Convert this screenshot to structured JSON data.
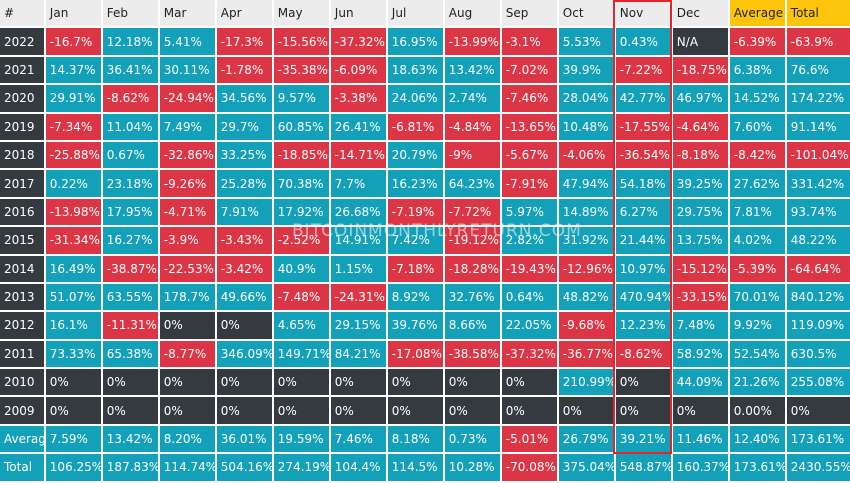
{
  "chart_data": {
    "type": "table",
    "columns": [
      "#",
      "Jan",
      "Feb",
      "Mar",
      "Apr",
      "May",
      "Jun",
      "Jul",
      "Aug",
      "Sep",
      "Oct",
      "Nov",
      "Dec",
      "Average",
      "Total"
    ],
    "highlighted_columns": [
      "Average",
      "Total"
    ],
    "boxed_column": "Nov",
    "rows": [
      {
        "label": "2022",
        "cells": [
          "-16.7%",
          "12.18%",
          "5.41%",
          "-17.3%",
          "-15.56%",
          "-37.32%",
          "16.95%",
          "-13.99%",
          "-3.1%",
          "5.53%",
          "0.43%",
          "N/A",
          "-6.39%",
          "-63.9%"
        ]
      },
      {
        "label": "2021",
        "cells": [
          "14.37%",
          "36.41%",
          "30.11%",
          "-1.78%",
          "-35.38%",
          "-6.09%",
          "18.63%",
          "13.42%",
          "-7.02%",
          "39.9%",
          "-7.22%",
          "-18.75%",
          "6.38%",
          "76.6%"
        ]
      },
      {
        "label": "2020",
        "cells": [
          "29.91%",
          "-8.62%",
          "-24.94%",
          "34.56%",
          "9.57%",
          "-3.38%",
          "24.06%",
          "2.74%",
          "-7.46%",
          "28.04%",
          "42.77%",
          "46.97%",
          "14.52%",
          "174.22%"
        ]
      },
      {
        "label": "2019",
        "cells": [
          "-7.34%",
          "11.04%",
          "7.49%",
          "29.7%",
          "60.85%",
          "26.41%",
          "-6.81%",
          "-4.84%",
          "-13.65%",
          "10.48%",
          "-17.55%",
          "-4.64%",
          "7.60%",
          "91.14%"
        ]
      },
      {
        "label": "2018",
        "cells": [
          "-25.88%",
          "0.67%",
          "-32.86%",
          "33.25%",
          "-18.85%",
          "-14.71%",
          "20.79%",
          "-9%",
          "-5.67%",
          "-4.06%",
          "-36.54%",
          "-8.18%",
          "-8.42%",
          "-101.04%"
        ]
      },
      {
        "label": "2017",
        "cells": [
          "0.22%",
          "23.18%",
          "-9.26%",
          "25.28%",
          "70.38%",
          "7.7%",
          "16.23%",
          "64.23%",
          "-7.91%",
          "47.94%",
          "54.18%",
          "39.25%",
          "27.62%",
          "331.42%"
        ]
      },
      {
        "label": "2016",
        "cells": [
          "-13.98%",
          "17.95%",
          "-4.71%",
          "7.91%",
          "17.92%",
          "26.68%",
          "-7.19%",
          "-7.72%",
          "5.97%",
          "14.89%",
          "6.27%",
          "29.75%",
          "7.81%",
          "93.74%"
        ]
      },
      {
        "label": "2015",
        "cells": [
          "-31.34%",
          "16.27%",
          "-3.9%",
          "-3.43%",
          "-2.52%",
          "14.91%",
          "7.42%",
          "-19.12%",
          "2.82%",
          "31.92%",
          "21.44%",
          "13.75%",
          "4.02%",
          "48.22%"
        ]
      },
      {
        "label": "2014",
        "cells": [
          "16.49%",
          "-38.87%",
          "-22.53%",
          "-3.42%",
          "40.9%",
          "1.15%",
          "-7.18%",
          "-18.28%",
          "-19.43%",
          "-12.96%",
          "10.97%",
          "-15.12%",
          "-5.39%",
          "-64.64%"
        ]
      },
      {
        "label": "2013",
        "cells": [
          "51.07%",
          "63.55%",
          "178.7%",
          "49.66%",
          "-7.48%",
          "-24.31%",
          "8.92%",
          "32.76%",
          "0.64%",
          "48.82%",
          "470.94%",
          "-33.15%",
          "70.01%",
          "840.12%"
        ]
      },
      {
        "label": "2012",
        "cells": [
          "16.1%",
          "-11.31%",
          "0%",
          "0%",
          "4.65%",
          "29.15%",
          "39.76%",
          "8.66%",
          "22.05%",
          "-9.68%",
          "12.23%",
          "7.48%",
          "9.92%",
          "119.09%"
        ]
      },
      {
        "label": "2011",
        "cells": [
          "73.33%",
          "65.38%",
          "-8.77%",
          "346.09%",
          "149.71%",
          "84.21%",
          "-17.08%",
          "-38.58%",
          "-37.32%",
          "-36.77%",
          "-8.62%",
          "58.92%",
          "52.54%",
          "630.5%"
        ]
      },
      {
        "label": "2010",
        "cells": [
          "0%",
          "0%",
          "0%",
          "0%",
          "0%",
          "0%",
          "0%",
          "0%",
          "0%",
          "210.99%",
          "0%",
          "44.09%",
          "21.26%",
          "255.08%"
        ]
      },
      {
        "label": "2009",
        "cells": [
          "0%",
          "0%",
          "0%",
          "0%",
          "0%",
          "0%",
          "0%",
          "0%",
          "0%",
          "0%",
          "0%",
          "0%",
          "0.00%",
          "0%"
        ]
      },
      {
        "label": "Average",
        "summary": true,
        "cells": [
          "7.59%",
          "13.42%",
          "8.20%",
          "36.01%",
          "19.59%",
          "7.46%",
          "8.18%",
          "0.73%",
          "-5.01%",
          "26.79%",
          "39.21%",
          "11.46%",
          "12.40%",
          "173.61%"
        ]
      },
      {
        "label": "Total",
        "summary": true,
        "cells": [
          "106.25%",
          "187.83%",
          "114.74%",
          "504.16%",
          "274.19%",
          "104.4%",
          "114.5%",
          "10.28%",
          "-70.08%",
          "375.04%",
          "548.87%",
          "160.37%",
          "173.61%",
          "2430.55%"
        ]
      }
    ],
    "colors": {
      "positive": "#12a1b8",
      "negative": "#dc3545",
      "zero": "#353a40",
      "header": "#ececec",
      "header_highlight": "#fcc40a",
      "box": "#e8232a"
    }
  },
  "watermark": "BITCOINMONTHLYRETURN.COM"
}
